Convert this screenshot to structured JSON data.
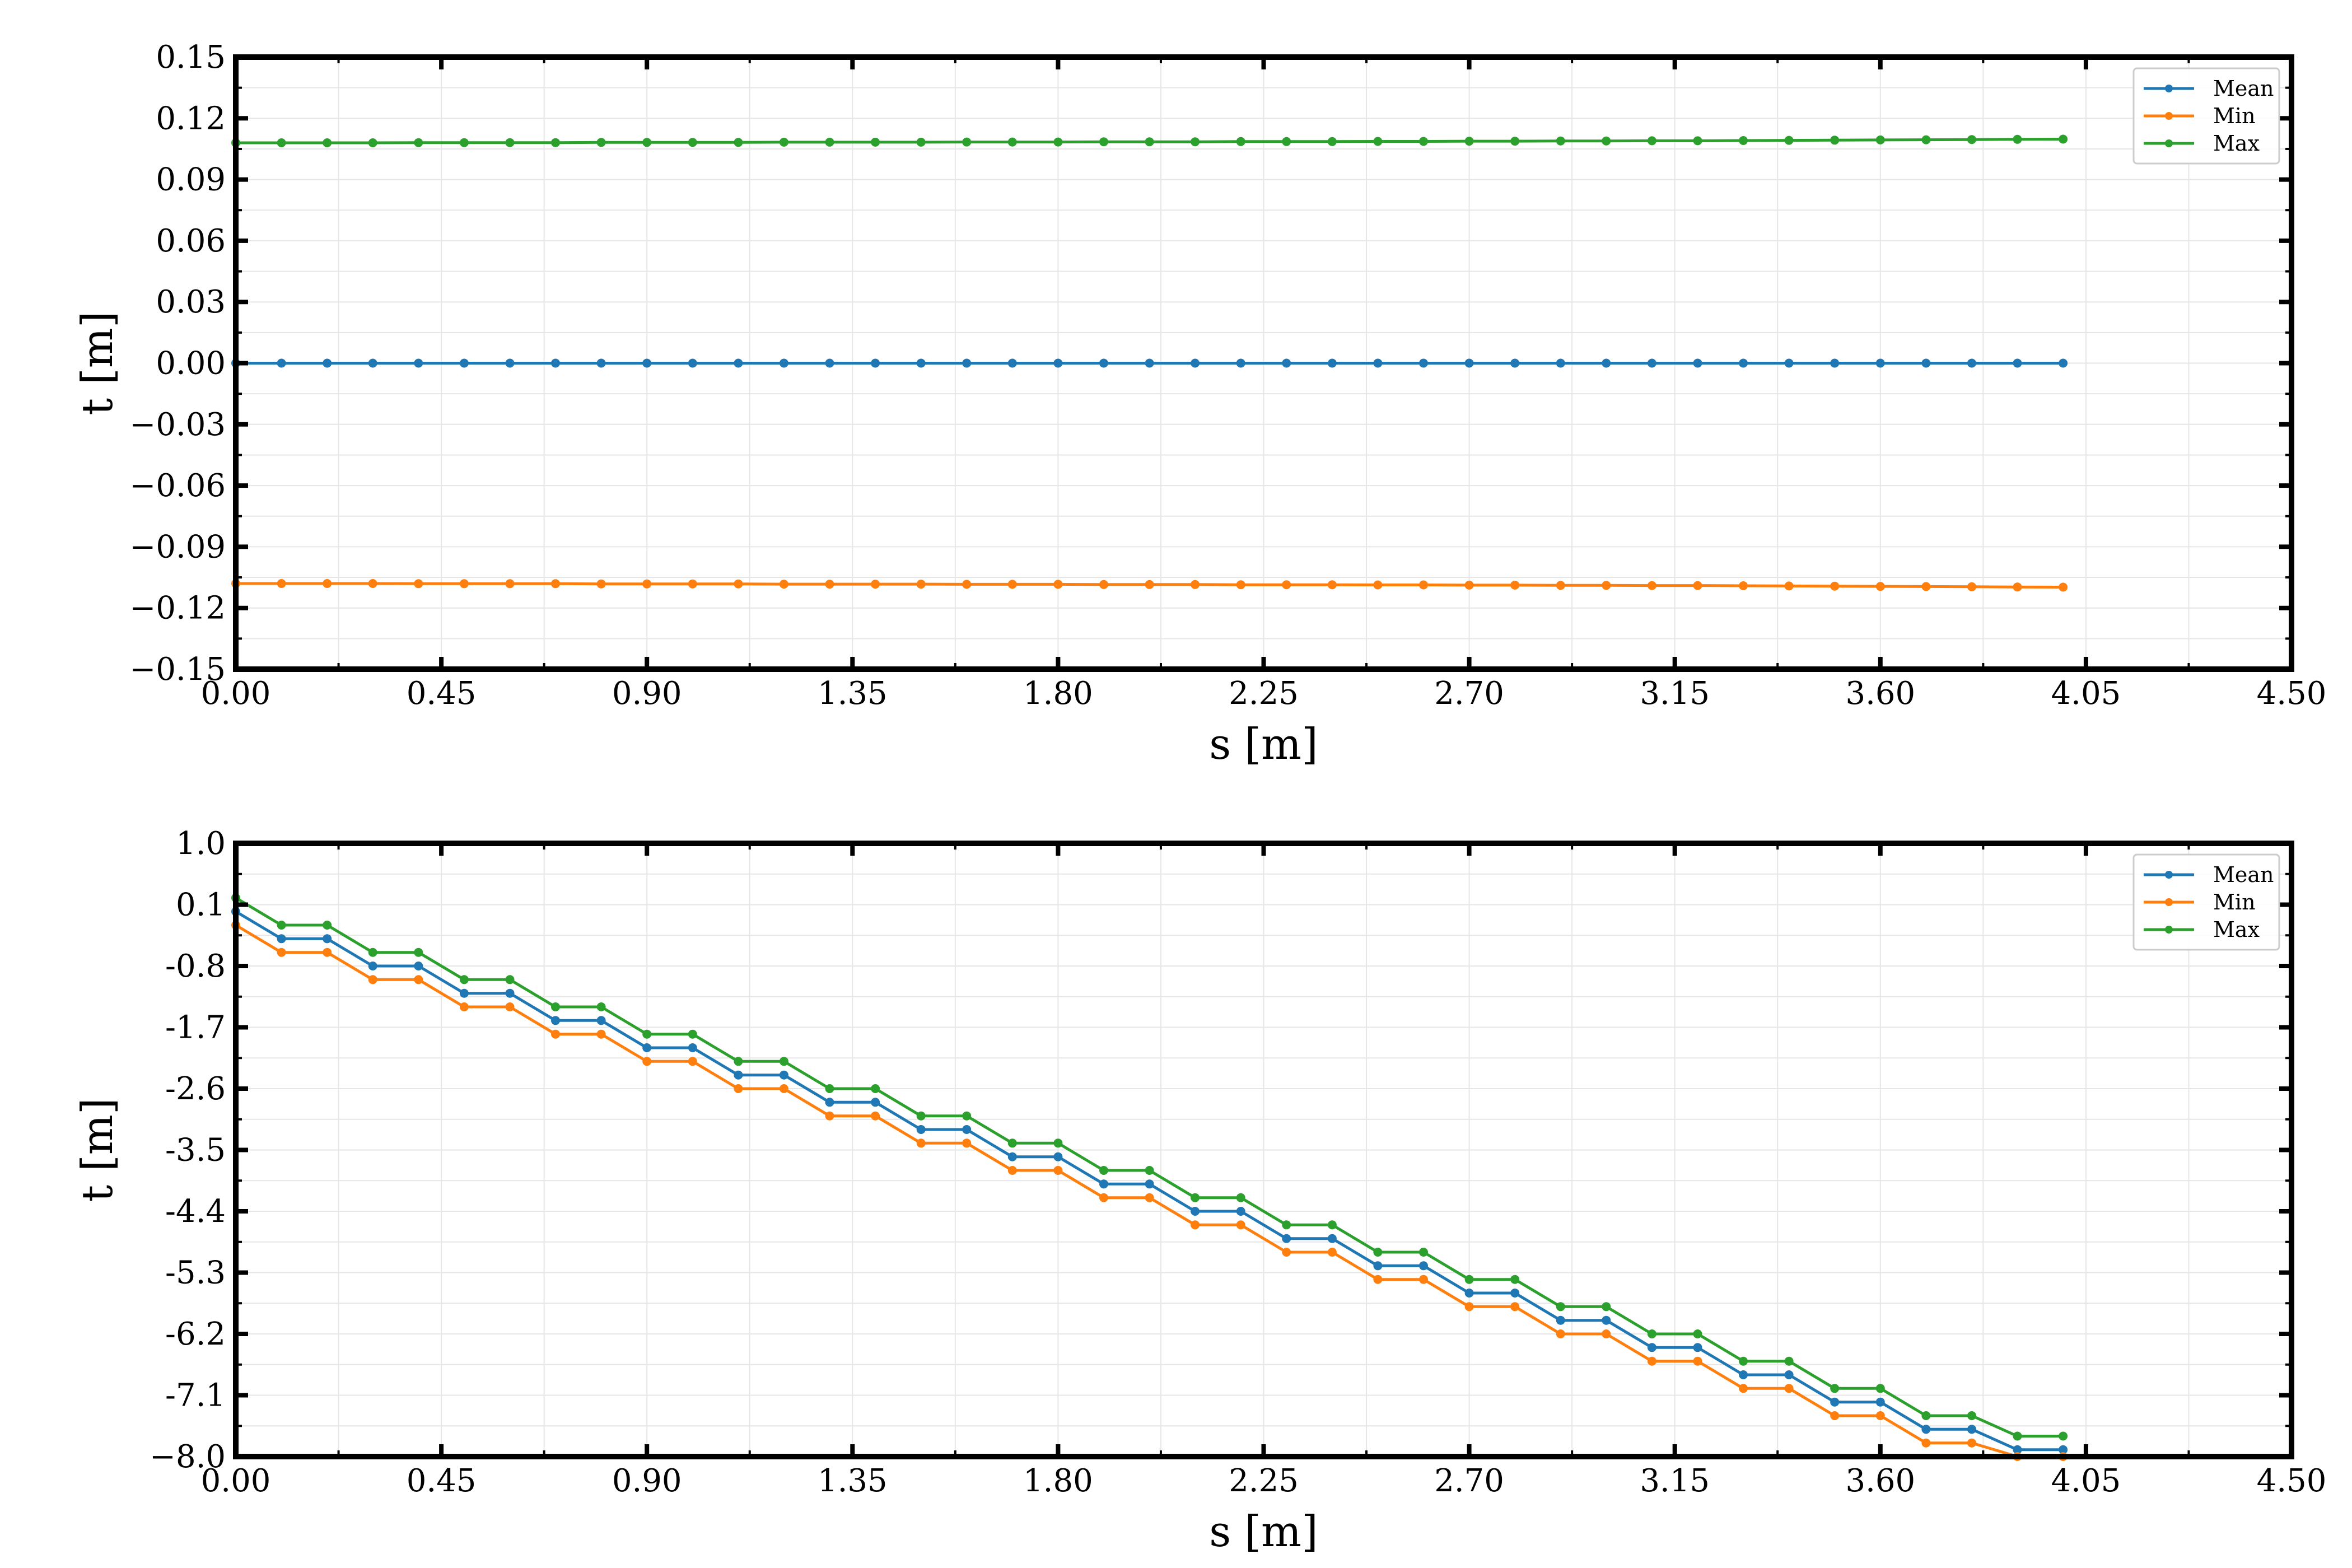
{
  "chart_data": [
    {
      "type": "line",
      "xlabel": "s [m]",
      "ylabel": "t [m]",
      "xlim": [
        0,
        4.5
      ],
      "ylim": [
        -0.15,
        0.15
      ],
      "xticks": [
        "0.00",
        "0.45",
        "0.90",
        "1.35",
        "1.80",
        "2.25",
        "2.70",
        "3.15",
        "3.60",
        "4.05",
        "4.50"
      ],
      "yticks": [
        "0.15",
        "0.12",
        "0.09",
        "0.06",
        "0.03",
        "0.00",
        "−0.03",
        "−0.06",
        "−0.09",
        "−0.12",
        "−0.15"
      ],
      "grid": true,
      "legend_position": "top-right",
      "x": {
        "start": 0.0,
        "step": 0.1,
        "count": 41
      },
      "series": [
        {
          "name": "Mean",
          "color": "#1f77b4",
          "values": [
            0.0,
            0.0,
            0.0,
            0.0,
            0.0,
            0.0,
            0.0,
            0.0,
            0.0,
            0.0,
            0.0,
            0.0,
            0.0,
            0.0,
            0.0,
            0.0,
            0.0,
            0.0,
            0.0,
            0.0,
            0.0,
            0.0,
            0.0,
            0.0,
            0.0,
            0.0,
            0.0,
            0.0,
            0.0,
            0.0,
            0.0,
            0.0,
            0.0,
            0.0,
            0.0,
            0.0,
            0.0,
            0.0,
            0.0,
            0.0,
            0.0
          ]
        },
        {
          "name": "Min",
          "color": "#ff7f0e",
          "values": [
            -0.108,
            -0.108,
            -0.108,
            -0.108,
            -0.1081,
            -0.1081,
            -0.1081,
            -0.1081,
            -0.1082,
            -0.1082,
            -0.1082,
            -0.1082,
            -0.1083,
            -0.1083,
            -0.1083,
            -0.1083,
            -0.1084,
            -0.1084,
            -0.1084,
            -0.1085,
            -0.1085,
            -0.1085,
            -0.1086,
            -0.1086,
            -0.1086,
            -0.1087,
            -0.1087,
            -0.1088,
            -0.1088,
            -0.1089,
            -0.1089,
            -0.109,
            -0.109,
            -0.1091,
            -0.1092,
            -0.1093,
            -0.1094,
            -0.1095,
            -0.1096,
            -0.1097,
            -0.1098
          ]
        },
        {
          "name": "Max",
          "color": "#2ca02c",
          "values": [
            0.108,
            0.108,
            0.108,
            0.108,
            0.1081,
            0.1081,
            0.1081,
            0.1081,
            0.1082,
            0.1082,
            0.1082,
            0.1082,
            0.1083,
            0.1083,
            0.1083,
            0.1083,
            0.1084,
            0.1084,
            0.1084,
            0.1085,
            0.1085,
            0.1085,
            0.1086,
            0.1086,
            0.1086,
            0.1087,
            0.1087,
            0.1088,
            0.1088,
            0.1089,
            0.1089,
            0.109,
            0.109,
            0.1091,
            0.1092,
            0.1093,
            0.1094,
            0.1095,
            0.1096,
            0.1097,
            0.1098
          ]
        }
      ]
    },
    {
      "type": "line",
      "xlabel": "s [m]",
      "ylabel": "t [m]",
      "xlim": [
        0,
        4.5
      ],
      "ylim": [
        -8.0,
        1.0
      ],
      "xticks": [
        "0.00",
        "0.45",
        "0.90",
        "1.35",
        "1.80",
        "2.25",
        "2.70",
        "3.15",
        "3.60",
        "4.05",
        "4.50"
      ],
      "yticks": [
        "1.0",
        "0.1",
        "-0.8",
        "-1.7",
        "-2.6",
        "-3.5",
        "-4.4",
        "-5.3",
        "-6.2",
        "-7.1",
        "−8.0"
      ],
      "grid": true,
      "legend_position": "top-right",
      "x": {
        "start": 0.0,
        "step": 0.1,
        "count": 41
      },
      "series": [
        {
          "name": "Mean",
          "color": "#1f77b4",
          "values": [
            0.0,
            -0.4,
            -0.4,
            -0.8,
            -0.8,
            -1.2,
            -1.2,
            -1.6,
            -1.6,
            -2.0,
            -2.0,
            -2.4,
            -2.4,
            -2.8,
            -2.8,
            -3.2,
            -3.2,
            -3.6,
            -3.6,
            -4.0,
            -4.0,
            -4.4,
            -4.4,
            -4.8,
            -4.8,
            -5.2,
            -5.2,
            -5.6,
            -5.6,
            -6.0,
            -6.0,
            -6.4,
            -6.4,
            -6.8,
            -6.8,
            -7.2,
            -7.2,
            -7.6,
            -7.6,
            -7.9,
            -7.9
          ]
        },
        {
          "name": "Min",
          "color": "#ff7f0e",
          "values": [
            -0.2,
            -0.6,
            -0.6,
            -1.0,
            -1.0,
            -1.4,
            -1.4,
            -1.8,
            -1.8,
            -2.2,
            -2.2,
            -2.6,
            -2.6,
            -3.0,
            -3.0,
            -3.4,
            -3.4,
            -3.8,
            -3.8,
            -4.2,
            -4.2,
            -4.6,
            -4.6,
            -5.0,
            -5.0,
            -5.4,
            -5.4,
            -5.8,
            -5.8,
            -6.2,
            -6.2,
            -6.6,
            -6.6,
            -7.0,
            -7.0,
            -7.4,
            -7.4,
            -7.8,
            -7.8,
            -8.0,
            -8.0
          ]
        },
        {
          "name": "Max",
          "color": "#2ca02c",
          "values": [
            0.2,
            -0.2,
            -0.2,
            -0.6,
            -0.6,
            -1.0,
            -1.0,
            -1.4,
            -1.4,
            -1.8,
            -1.8,
            -2.2,
            -2.2,
            -2.6,
            -2.6,
            -3.0,
            -3.0,
            -3.4,
            -3.4,
            -3.8,
            -3.8,
            -4.2,
            -4.2,
            -4.6,
            -4.6,
            -5.0,
            -5.0,
            -5.4,
            -5.4,
            -5.8,
            -5.8,
            -6.2,
            -6.2,
            -6.6,
            -6.6,
            -7.0,
            -7.0,
            -7.4,
            -7.4,
            -7.7,
            -7.7
          ]
        }
      ]
    }
  ]
}
